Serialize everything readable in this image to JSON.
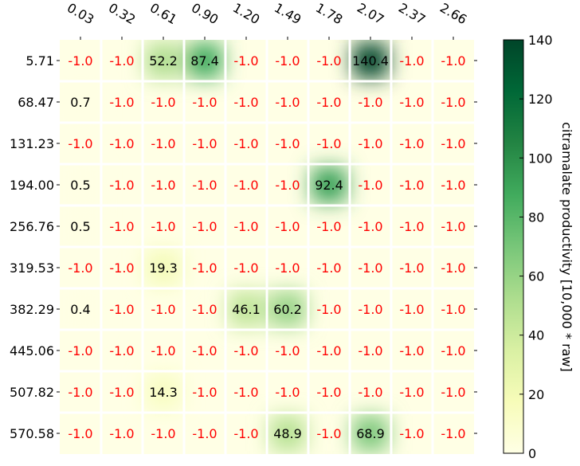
{
  "chart_data": {
    "type": "heatmap",
    "x_tick_labels": [
      "0.03",
      "0.32",
      "0.61",
      "0.90",
      "1.20",
      "1.49",
      "1.78",
      "2.07",
      "2.37",
      "2.66"
    ],
    "y_tick_labels": [
      "5.71",
      "68.47",
      "131.23",
      "194.00",
      "256.76",
      "319.53",
      "382.29",
      "445.06",
      "507.82",
      "570.58"
    ],
    "values": [
      [
        -1.0,
        -1.0,
        52.2,
        87.4,
        -1.0,
        -1.0,
        -1.0,
        140.4,
        -1.0,
        -1.0
      ],
      [
        0.7,
        -1.0,
        -1.0,
        -1.0,
        -1.0,
        -1.0,
        -1.0,
        -1.0,
        -1.0,
        -1.0
      ],
      [
        -1.0,
        -1.0,
        -1.0,
        -1.0,
        -1.0,
        -1.0,
        -1.0,
        -1.0,
        -1.0,
        -1.0
      ],
      [
        0.5,
        -1.0,
        -1.0,
        -1.0,
        -1.0,
        -1.0,
        92.4,
        -1.0,
        -1.0,
        -1.0
      ],
      [
        0.5,
        -1.0,
        -1.0,
        -1.0,
        -1.0,
        -1.0,
        -1.0,
        -1.0,
        -1.0,
        -1.0
      ],
      [
        -1.0,
        -1.0,
        19.3,
        -1.0,
        -1.0,
        -1.0,
        -1.0,
        -1.0,
        -1.0,
        -1.0
      ],
      [
        0.4,
        -1.0,
        -1.0,
        -1.0,
        46.1,
        60.2,
        -1.0,
        -1.0,
        -1.0,
        -1.0
      ],
      [
        -1.0,
        -1.0,
        -1.0,
        -1.0,
        -1.0,
        -1.0,
        -1.0,
        -1.0,
        -1.0,
        -1.0
      ],
      [
        -1.0,
        -1.0,
        14.3,
        -1.0,
        -1.0,
        -1.0,
        -1.0,
        -1.0,
        -1.0,
        -1.0
      ],
      [
        -1.0,
        -1.0,
        -1.0,
        -1.0,
        -1.0,
        48.9,
        -1.0,
        68.9,
        -1.0,
        -1.0
      ]
    ],
    "colorbar": {
      "label": "citramalate productivity [10,000 * raw]",
      "ticks": [
        0,
        20,
        40,
        60,
        80,
        100,
        120,
        140
      ],
      "range": [
        0,
        140
      ],
      "colormap": "YlGn"
    },
    "grid": true,
    "negative_label_color": "#ff0000",
    "positive_label_color": "#000000"
  }
}
